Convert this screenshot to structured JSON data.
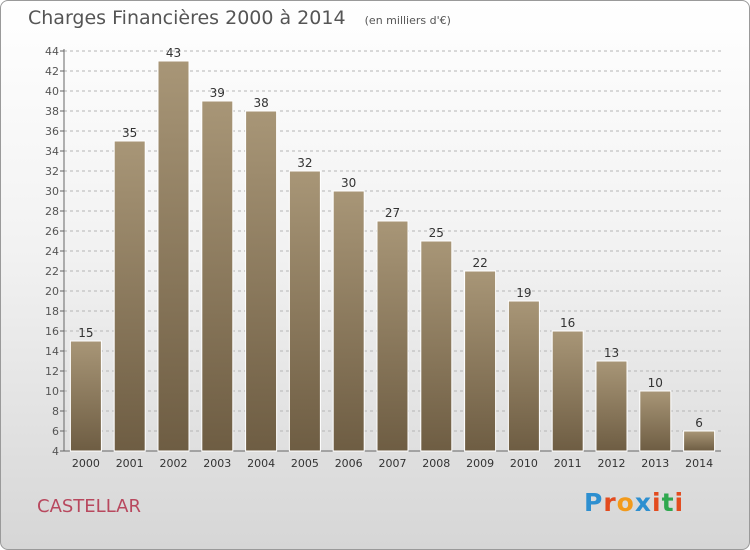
{
  "title": "Charges Financières 2000 à 2014",
  "unit": "(en milliers d'€)",
  "commune": "CASTELLAR",
  "logo_text": "Proxiti",
  "colors": {
    "bar_top": "#a89677",
    "bar_bottom": "#6e5d43",
    "bar_edge": "#ffffff",
    "text": "#555555",
    "grid": "#b5b5b5",
    "commune": "#b8485e",
    "logo": [
      "#2d8fd0",
      "#e34b1e",
      "#f29a1b",
      "#2d8fd0",
      "#e34b1e",
      "#2fa84f",
      "#e34b1e"
    ]
  },
  "chart_data": {
    "type": "bar",
    "title": "Charges Financières 2000 à 2014",
    "subtitle": "(en milliers d'€)",
    "xlabel": "",
    "ylabel": "",
    "ylim": [
      4,
      44
    ],
    "y_ticks": [
      4,
      6,
      8,
      10,
      12,
      14,
      16,
      18,
      20,
      22,
      24,
      26,
      28,
      30,
      32,
      34,
      36,
      38,
      40,
      42,
      44
    ],
    "grid": "horizontal dashed",
    "categories": [
      "2000",
      "2001",
      "2002",
      "2003",
      "2004",
      "2005",
      "2006",
      "2007",
      "2008",
      "2009",
      "2010",
      "2011",
      "2012",
      "2013",
      "2014"
    ],
    "values": [
      15,
      35,
      43,
      39,
      38,
      32,
      30,
      27,
      25,
      22,
      19,
      16,
      13,
      10,
      6
    ],
    "data_labels": [
      "15",
      "35",
      "43",
      "39",
      "38",
      "32",
      "30",
      "27",
      "25",
      "22",
      "19",
      "16",
      "13",
      "10",
      "6"
    ]
  }
}
